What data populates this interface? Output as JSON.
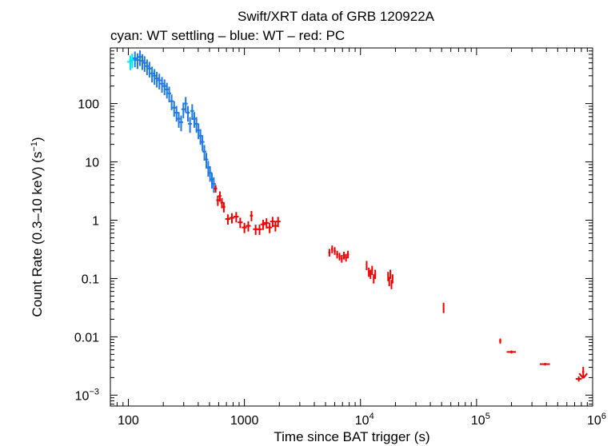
{
  "chart_data": {
    "type": "scatter",
    "title": "Swift/XRT data of GRB 120922A",
    "subtitle": "cyan: WT settling – blue: WT – red: PC",
    "xlabel": "Time since BAT trigger (s)",
    "ylabel_main": "Count Rate (0.3–10 keV) (s",
    "ylabel_exp": "−1",
    "ylabel_end": ")",
    "xscale": "log",
    "yscale": "log",
    "xlim": [
      70,
      1000000
    ],
    "ylim": [
      0.00065,
      900
    ],
    "x_ticks": [
      {
        "value": 100,
        "base": "100",
        "exp": ""
      },
      {
        "value": 1000,
        "base": "1000",
        "exp": ""
      },
      {
        "value": 10000,
        "base": "10",
        "exp": "4"
      },
      {
        "value": 100000,
        "base": "10",
        "exp": "5"
      },
      {
        "value": 1000000,
        "base": "10",
        "exp": "6"
      }
    ],
    "y_ticks": [
      {
        "value": 100,
        "base": "100",
        "exp": ""
      },
      {
        "value": 10,
        "base": "10",
        "exp": ""
      },
      {
        "value": 1,
        "base": "1",
        "exp": ""
      },
      {
        "value": 0.1,
        "base": "0.1",
        "exp": ""
      },
      {
        "value": 0.01,
        "base": "0.01",
        "exp": ""
      },
      {
        "value": 0.001,
        "base": "10",
        "exp": "−3"
      }
    ],
    "series": [
      {
        "name": "WT settling",
        "color": "#00e5ee",
        "points": [
          [
            104,
            520,
            0.06,
            0.28
          ],
          [
            108,
            560,
            0.06,
            0.28
          ]
        ]
      },
      {
        "name": "WT",
        "color": "#1e78e6",
        "points": [
          [
            114,
            600,
            0.04,
            0.3
          ],
          [
            120,
            560,
            0.04,
            0.3
          ],
          [
            126,
            630,
            0.04,
            0.3
          ],
          [
            132,
            540,
            0.04,
            0.3
          ],
          [
            138,
            500,
            0.04,
            0.3
          ],
          [
            145,
            440,
            0.04,
            0.3
          ],
          [
            152,
            400,
            0.04,
            0.3
          ],
          [
            160,
            330,
            0.04,
            0.3
          ],
          [
            168,
            300,
            0.04,
            0.3
          ],
          [
            176,
            270,
            0.04,
            0.3
          ],
          [
            185,
            250,
            0.04,
            0.3
          ],
          [
            195,
            220,
            0.04,
            0.3
          ],
          [
            205,
            200,
            0.04,
            0.3
          ],
          [
            215,
            175,
            0.04,
            0.3
          ],
          [
            225,
            150,
            0.04,
            0.3
          ],
          [
            236,
            110,
            0.04,
            0.3
          ],
          [
            248,
            85,
            0.04,
            0.3
          ],
          [
            260,
            70,
            0.04,
            0.3
          ],
          [
            272,
            55,
            0.04,
            0.3
          ],
          [
            285,
            48,
            0.04,
            0.3
          ],
          [
            298,
            80,
            0.04,
            0.3
          ],
          [
            312,
            100,
            0.04,
            0.3
          ],
          [
            326,
            70,
            0.04,
            0.3
          ],
          [
            340,
            45,
            0.04,
            0.3
          ],
          [
            355,
            75,
            0.04,
            0.3
          ],
          [
            370,
            55,
            0.04,
            0.3
          ],
          [
            386,
            45,
            0.04,
            0.3
          ],
          [
            402,
            35,
            0.04,
            0.3
          ],
          [
            418,
            28,
            0.04,
            0.3
          ],
          [
            435,
            22,
            0.04,
            0.3
          ],
          [
            452,
            15,
            0.04,
            0.3
          ],
          [
            470,
            11,
            0.04,
            0.3
          ],
          [
            488,
            8,
            0.04,
            0.3
          ],
          [
            506,
            6.5,
            0.04,
            0.3
          ],
          [
            525,
            5.0,
            0.04,
            0.3
          ],
          [
            545,
            4.2,
            0.04,
            0.3
          ]
        ]
      },
      {
        "name": "PC",
        "color": "#ee0000",
        "points": [
          [
            565,
            3.5,
            0.03,
            0.15
          ],
          [
            590,
            2.2,
            0.03,
            0.2
          ],
          [
            615,
            2.6,
            0.03,
            0.2
          ],
          [
            640,
            2.0,
            0.03,
            0.2
          ],
          [
            665,
            1.7,
            0.03,
            0.2
          ],
          [
            720,
            1.05,
            0.05,
            0.2
          ],
          [
            780,
            1.1,
            0.05,
            0.2
          ],
          [
            850,
            1.15,
            0.05,
            0.2
          ],
          [
            920,
            0.92,
            0.05,
            0.2
          ],
          [
            1000,
            0.75,
            0.05,
            0.2
          ],
          [
            1080,
            0.8,
            0.05,
            0.2
          ],
          [
            1150,
            1.2,
            0.03,
            0.2
          ],
          [
            1250,
            0.7,
            0.05,
            0.2
          ],
          [
            1350,
            0.7,
            0.05,
            0.2
          ],
          [
            1450,
            0.85,
            0.05,
            0.2
          ],
          [
            1550,
            0.9,
            0.05,
            0.2
          ],
          [
            1650,
            0.75,
            0.05,
            0.2
          ],
          [
            1750,
            0.95,
            0.05,
            0.2
          ],
          [
            1850,
            0.8,
            0.05,
            0.2
          ],
          [
            1950,
            0.95,
            0.05,
            0.2
          ],
          [
            5400,
            0.28,
            0.02,
            0.15
          ],
          [
            5700,
            0.32,
            0.02,
            0.15
          ],
          [
            6000,
            0.3,
            0.02,
            0.15
          ],
          [
            6300,
            0.26,
            0.02,
            0.15
          ],
          [
            6600,
            0.24,
            0.02,
            0.15
          ],
          [
            6900,
            0.22,
            0.02,
            0.15
          ],
          [
            7200,
            0.25,
            0.02,
            0.15
          ],
          [
            7500,
            0.23,
            0.02,
            0.15
          ],
          [
            7800,
            0.26,
            0.02,
            0.15
          ],
          [
            11300,
            0.17,
            0.015,
            0.18
          ],
          [
            11800,
            0.13,
            0.015,
            0.18
          ],
          [
            12200,
            0.12,
            0.015,
            0.18
          ],
          [
            12600,
            0.14,
            0.015,
            0.18
          ],
          [
            13000,
            0.1,
            0.015,
            0.18
          ],
          [
            13400,
            0.12,
            0.015,
            0.18
          ],
          [
            17300,
            0.11,
            0.012,
            0.18
          ],
          [
            17700,
            0.09,
            0.012,
            0.18
          ],
          [
            18100,
            0.12,
            0.012,
            0.18
          ],
          [
            18500,
            0.08,
            0.012,
            0.18
          ],
          [
            18900,
            0.1,
            0.012,
            0.18
          ],
          [
            52000,
            0.032,
            0.005,
            0.2
          ],
          [
            160000,
            0.0085,
            0.02,
            0.1
          ],
          [
            200000,
            0.0055,
            0.09,
            0.06
          ],
          [
            390000,
            0.0034,
            0.1,
            0.05
          ],
          [
            760000,
            0.0019,
            0.06,
            0.1
          ],
          [
            830000,
            0.0025,
            0.02,
            0.22
          ]
        ]
      }
    ]
  }
}
